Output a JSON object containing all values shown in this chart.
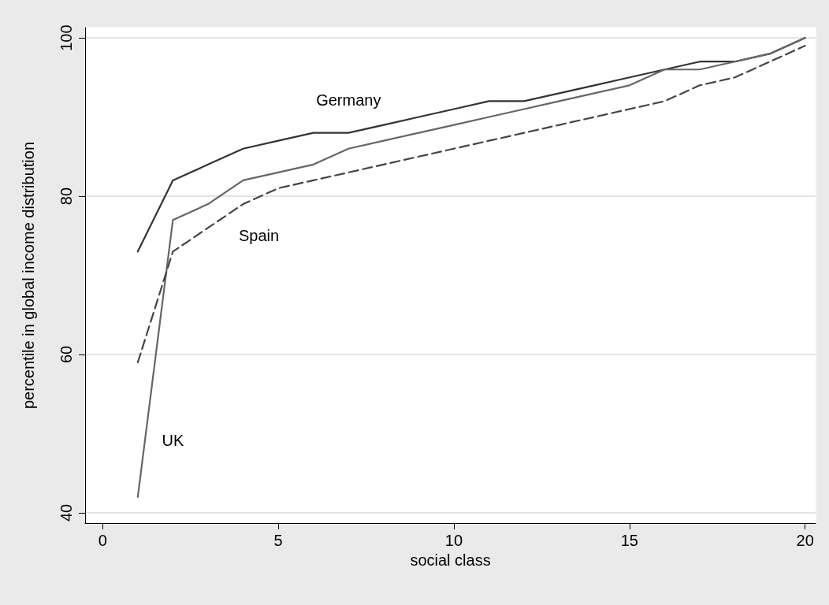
{
  "chart_data": {
    "type": "line",
    "xlabel": "social class",
    "ylabel": "percentile in global income distribution",
    "x": [
      1,
      2,
      3,
      4,
      5,
      6,
      7,
      8,
      9,
      10,
      11,
      12,
      13,
      14,
      15,
      16,
      17,
      18,
      19,
      20
    ],
    "series": [
      {
        "name": "Germany",
        "color": "#333333",
        "line_style": "solid",
        "values": [
          73,
          82,
          84,
          86,
          87,
          88,
          88,
          89,
          90,
          91,
          92,
          92,
          93,
          94,
          95,
          96,
          97,
          97,
          98,
          100
        ]
      },
      {
        "name": "UK",
        "color": "#666666",
        "line_style": "solid",
        "values": [
          42,
          77,
          79,
          82,
          83,
          84,
          86,
          87,
          88,
          89,
          90,
          91,
          92,
          93,
          94,
          96,
          96,
          97,
          98,
          100
        ]
      },
      {
        "name": "Spain",
        "color": "#444444",
        "line_style": "dashed",
        "values": [
          59,
          73,
          76,
          79,
          81,
          82,
          83,
          84,
          85,
          86,
          87,
          88,
          89,
          90,
          91,
          92,
          94,
          95,
          97,
          99
        ]
      }
    ],
    "xlim": [
      -0.5,
      20.3
    ],
    "ylim": [
      38.7,
      101.3
    ],
    "xticks": [
      0,
      5,
      10,
      15,
      20
    ],
    "yticks": [
      40,
      60,
      80,
      100
    ],
    "grid": "y",
    "marker": "none"
  }
}
